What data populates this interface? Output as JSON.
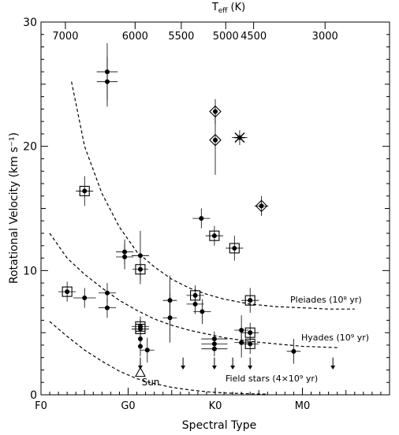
{
  "chart_data": {
    "type": "scatter",
    "title": "",
    "xlabel": "Spectral Type",
    "ylabel": "Rotational Velocity (km s⁻¹)",
    "top_axis_label": "T",
    "top_axis_label_sub": "eff",
    "top_axis_label_unit": "(K)",
    "x_ticks": [
      {
        "pos": 0,
        "label": "F0"
      },
      {
        "pos": 10,
        "label": "G0"
      },
      {
        "pos": 20,
        "label": "K0"
      },
      {
        "pos": 30,
        "label": "M0"
      }
    ],
    "x_range": [
      0,
      40
    ],
    "top_ticks": [
      {
        "pos": 2.8,
        "label": "7000"
      },
      {
        "pos": 10.8,
        "label": "6000"
      },
      {
        "pos": 16.1,
        "label": "5500"
      },
      {
        "pos": 21.2,
        "label": "5000"
      },
      {
        "pos": 24.4,
        "label": "4500"
      },
      {
        "pos": 32.6,
        "label": "3000"
      }
    ],
    "y_ticks": [
      0,
      10,
      20,
      30
    ],
    "ylim": [
      0,
      30
    ],
    "points": [
      {
        "x": 3.0,
        "y": 8.3,
        "xerr": 1.0,
        "yerr": 0.8,
        "marker": "square"
      },
      {
        "x": 5.0,
        "y": 7.8,
        "xerr": 1.3,
        "yerr": 0.8,
        "marker": "dot"
      },
      {
        "x": 5.0,
        "y": 16.4,
        "xerr": 1.0,
        "yerr": 1.2,
        "marker": "square"
      },
      {
        "x": 7.6,
        "y": 26.0,
        "xerr": 1.2,
        "yerr": 2.3,
        "marker": "dot"
      },
      {
        "x": 7.6,
        "y": 25.2,
        "xerr": 1.2,
        "yerr": 2.0,
        "marker": "dot"
      },
      {
        "x": 7.6,
        "y": 8.2,
        "xerr": 1.0,
        "yerr": 0.8,
        "marker": "dot"
      },
      {
        "x": 7.6,
        "y": 7.0,
        "xerr": 1.0,
        "yerr": 0.8,
        "marker": "dot"
      },
      {
        "x": 9.6,
        "y": 11.5,
        "xerr": 1.0,
        "yerr": 1.0,
        "marker": "dot"
      },
      {
        "x": 9.6,
        "y": 11.1,
        "xerr": 1.0,
        "yerr": 1.0,
        "marker": "dot"
      },
      {
        "x": 11.4,
        "y": 11.2,
        "xerr": 1.0,
        "yerr": 2.0,
        "marker": "dot"
      },
      {
        "x": 11.4,
        "y": 10.1,
        "xerr": 0.9,
        "yerr": 1.2,
        "marker": "square"
      },
      {
        "x": 11.4,
        "y": 5.5,
        "xerr": 1.0,
        "yerr": 0.8,
        "marker": "square"
      },
      {
        "x": 11.4,
        "y": 5.3,
        "xerr": 1.0,
        "yerr": 0.8,
        "marker": "square"
      },
      {
        "x": 11.4,
        "y": 4.5,
        "xerr": 0.0,
        "yerr": 0.8,
        "marker": "dot"
      },
      {
        "x": 11.4,
        "y": 3.9,
        "xerr": 0.0,
        "yerr": 0.8,
        "marker": "dot"
      },
      {
        "x": 12.2,
        "y": 3.6,
        "xerr": 0.8,
        "yerr": 1.0,
        "marker": "dot"
      },
      {
        "x": 14.8,
        "y": 7.6,
        "xerr": 0.8,
        "yerr": 2.0,
        "marker": "dot"
      },
      {
        "x": 14.8,
        "y": 6.2,
        "xerr": 0.8,
        "yerr": 2.0,
        "marker": "dot"
      },
      {
        "x": 17.7,
        "y": 8.0,
        "xerr": 1.0,
        "yerr": 0.8,
        "marker": "square"
      },
      {
        "x": 17.7,
        "y": 7.3,
        "xerr": 1.0,
        "yerr": 0.8,
        "marker": "dot"
      },
      {
        "x": 18.5,
        "y": 6.7,
        "xerr": 1.0,
        "yerr": 1.0,
        "marker": "dot"
      },
      {
        "x": 18.4,
        "y": 14.2,
        "xerr": 1.0,
        "yerr": 0.8,
        "marker": "dot"
      },
      {
        "x": 19.9,
        "y": 12.8,
        "xerr": 1.0,
        "yerr": 0.8,
        "marker": "square"
      },
      {
        "x": 22.2,
        "y": 11.8,
        "xerr": 1.0,
        "yerr": 1.0,
        "marker": "square"
      },
      {
        "x": 20.0,
        "y": 22.8,
        "xerr": 0.0,
        "yerr": 1.0,
        "marker": "diamond"
      },
      {
        "x": 20.0,
        "y": 20.5,
        "xerr": 0.0,
        "yerr": 2.8,
        "marker": "diamond"
      },
      {
        "x": 22.8,
        "y": 20.7,
        "xerr": 0.9,
        "yerr": 0.6,
        "marker": "star"
      },
      {
        "x": 25.3,
        "y": 15.2,
        "xerr": 0.8,
        "yerr": 0.8,
        "marker": "diamond"
      },
      {
        "x": 19.9,
        "y": 4.5,
        "xerr": 1.5,
        "yerr": 0.6,
        "marker": "dot"
      },
      {
        "x": 19.9,
        "y": 4.1,
        "xerr": 1.5,
        "yerr": 0.6,
        "marker": "dot"
      },
      {
        "x": 19.9,
        "y": 3.7,
        "xerr": 1.5,
        "yerr": 0.6,
        "marker": "dot"
      },
      {
        "x": 23.0,
        "y": 5.2,
        "xerr": 0.8,
        "yerr": 1.2,
        "marker": "dot"
      },
      {
        "x": 23.0,
        "y": 4.2,
        "xerr": 0.8,
        "yerr": 1.2,
        "marker": "dot"
      },
      {
        "x": 24.0,
        "y": 7.6,
        "xerr": 1.0,
        "yerr": 1.0,
        "marker": "square"
      },
      {
        "x": 24.0,
        "y": 5.0,
        "xerr": 1.0,
        "yerr": 0.8,
        "marker": "square"
      },
      {
        "x": 24.0,
        "y": 4.1,
        "xerr": 1.0,
        "yerr": 0.8,
        "marker": "square"
      },
      {
        "x": 29.0,
        "y": 3.5,
        "xerr": 0.8,
        "yerr": 1.0,
        "marker": "dot"
      }
    ],
    "sun": {
      "x": 11.4,
      "y": 1.8,
      "label": "Sun"
    },
    "upper_limits": [
      {
        "x": 11.4,
        "y": 3.0
      },
      {
        "x": 16.3,
        "y": 3.0
      },
      {
        "x": 19.9,
        "y": 3.0
      },
      {
        "x": 22.0,
        "y": 3.0
      },
      {
        "x": 24.0,
        "y": 3.0
      },
      {
        "x": 33.5,
        "y": 3.0
      }
    ],
    "curves": [
      {
        "name": "Pleiades",
        "label": "Pleiades (10⁸ yr)",
        "x": [
          3.5,
          5,
          7,
          9,
          11,
          13,
          15,
          17,
          19,
          21,
          24,
          27,
          30,
          33,
          36
        ],
        "y": [
          25.2,
          20.0,
          16.2,
          13.5,
          11.5,
          10.3,
          9.3,
          8.6,
          8.1,
          7.7,
          7.3,
          7.1,
          7.0,
          6.9,
          6.9
        ]
      },
      {
        "name": "Hyades",
        "label": "Hyades (10⁹ yr)",
        "x": [
          1,
          3,
          5,
          7,
          9,
          11,
          13,
          15,
          17,
          19,
          21,
          24,
          27,
          30,
          34
        ],
        "y": [
          13.0,
          11.0,
          9.7,
          8.6,
          7.6,
          6.8,
          6.1,
          5.6,
          5.2,
          4.9,
          4.6,
          4.3,
          4.1,
          3.9,
          3.8
        ]
      },
      {
        "name": "Field stars",
        "label": "Field stars (4×10⁹ yr)",
        "x": [
          1,
          3,
          5,
          7,
          9,
          11,
          13,
          15,
          17,
          19,
          21,
          23,
          26
        ],
        "y": [
          5.9,
          4.7,
          3.6,
          2.7,
          1.9,
          1.3,
          0.9,
          0.6,
          0.4,
          0.25,
          0.15,
          0.1,
          0.05
        ]
      }
    ]
  }
}
